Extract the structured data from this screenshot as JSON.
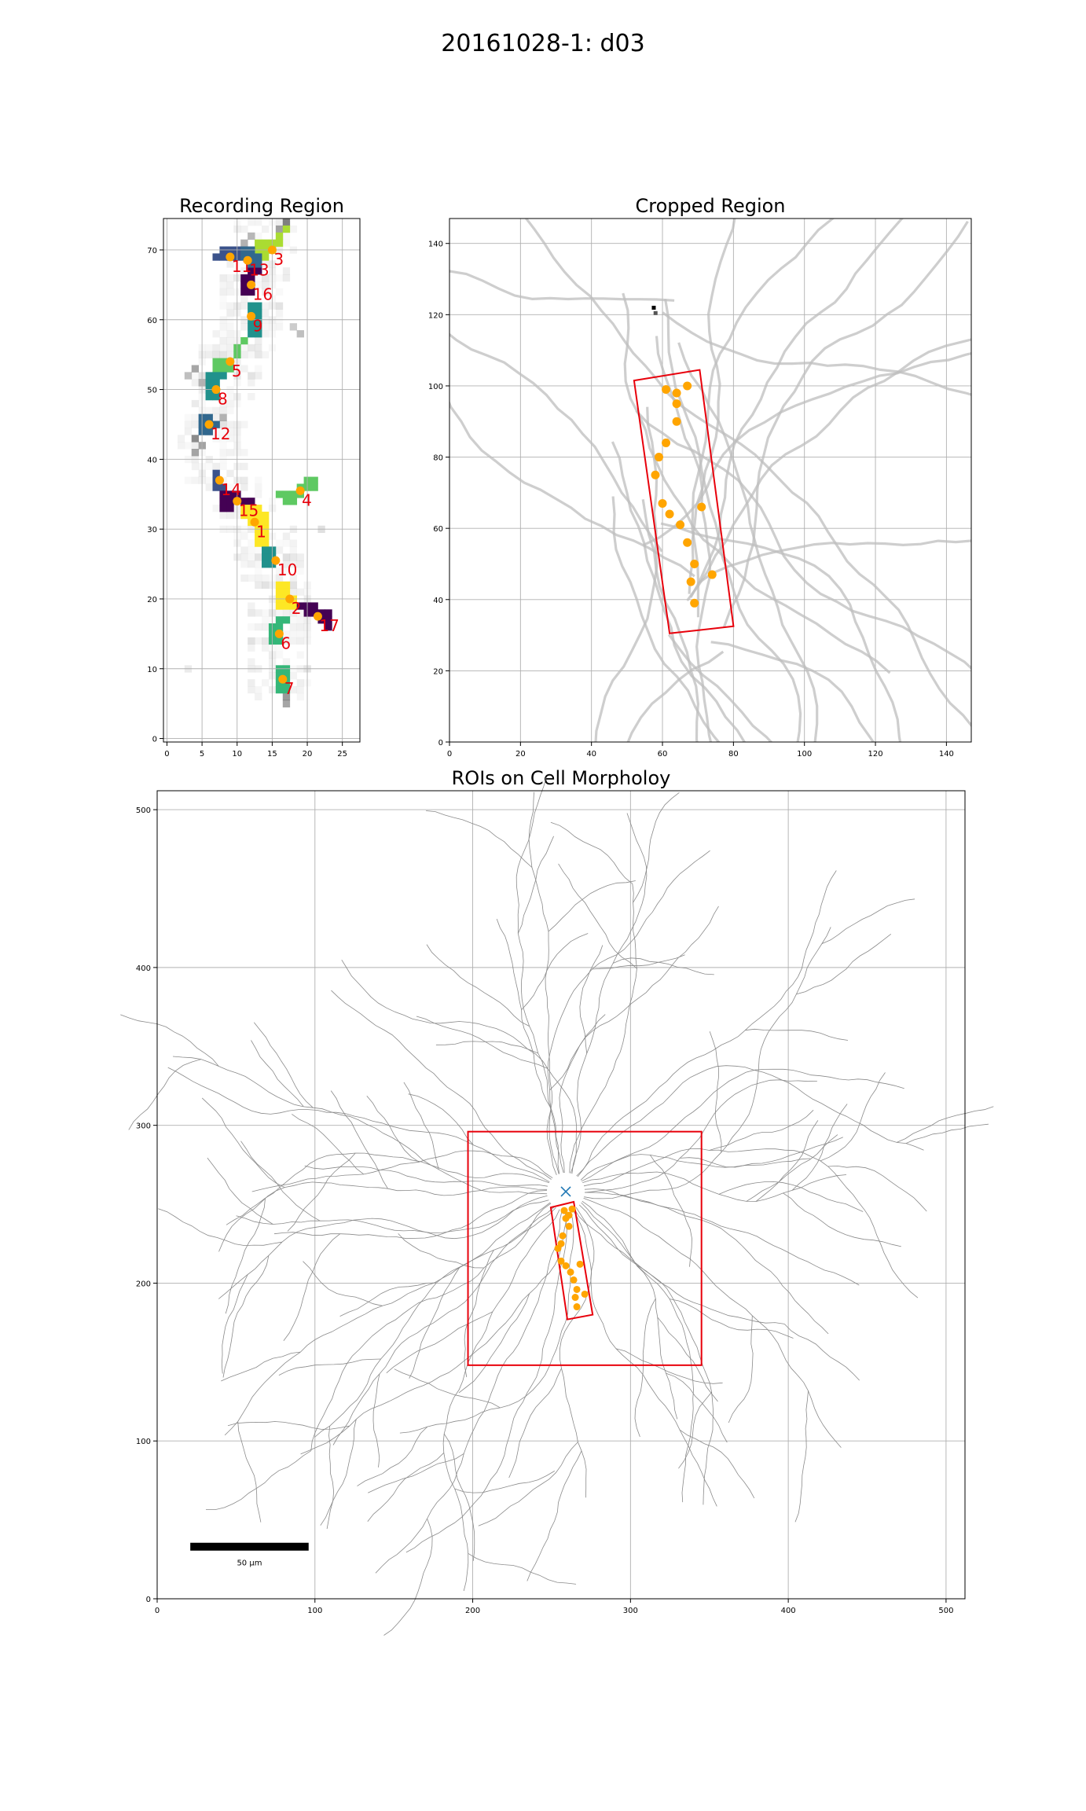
{
  "title": "20161028-1: d03",
  "colors": {
    "roi_marker": "#ffa500",
    "roi_label": "#e8000b",
    "box": "#e8000b",
    "soma_marker": "#1f77b4",
    "grid": "#b0b0b0",
    "dendrite": "#bdbdbd"
  },
  "chart_data": [
    {
      "type": "heatmap",
      "title": "Recording Region",
      "xlim": [
        -0.5,
        27.5
      ],
      "ylim": [
        -0.5,
        74.5
      ],
      "xticks": [
        0,
        5,
        10,
        15,
        20,
        25
      ],
      "yticks": [
        0,
        10,
        20,
        30,
        40,
        50,
        60,
        70
      ],
      "grid": true,
      "rois": [
        {
          "id": "1",
          "x": 12.5,
          "y": 31.0
        },
        {
          "id": "2",
          "x": 17.5,
          "y": 20.0
        },
        {
          "id": "3",
          "x": 15.0,
          "y": 70.0
        },
        {
          "id": "4",
          "x": 19.0,
          "y": 35.5
        },
        {
          "id": "5",
          "x": 9.0,
          "y": 54.0
        },
        {
          "id": "6",
          "x": 16.0,
          "y": 15.0
        },
        {
          "id": "7",
          "x": 16.5,
          "y": 8.5
        },
        {
          "id": "8",
          "x": 7.0,
          "y": 50.0
        },
        {
          "id": "9",
          "x": 12.0,
          "y": 60.5
        },
        {
          "id": "10",
          "x": 15.5,
          "y": 25.5
        },
        {
          "id": "11",
          "x": 9.0,
          "y": 69.0
        },
        {
          "id": "12",
          "x": 6.0,
          "y": 45.0
        },
        {
          "id": "13",
          "x": 11.5,
          "y": 68.5
        },
        {
          "id": "14",
          "x": 7.5,
          "y": 37.0
        },
        {
          "id": "15",
          "x": 10.0,
          "y": 34.0
        },
        {
          "id": "16",
          "x": 12.0,
          "y": 65.0
        },
        {
          "id": "17",
          "x": 21.5,
          "y": 17.5
        }
      ]
    },
    {
      "type": "scatter",
      "title": "Cropped Region",
      "xlim": [
        0,
        147
      ],
      "ylim": [
        0,
        147
      ],
      "xticks": [
        0,
        20,
        40,
        60,
        80,
        100,
        120,
        140
      ],
      "yticks": [
        0,
        20,
        40,
        60,
        80,
        100,
        120,
        140
      ],
      "grid": true,
      "rect": [
        [
          52,
          101.5
        ],
        [
          70.5,
          104.5
        ],
        [
          80,
          32.5
        ],
        [
          62,
          30.5
        ]
      ],
      "points": [
        [
          61,
          99
        ],
        [
          64,
          98
        ],
        [
          67,
          100
        ],
        [
          64,
          95
        ],
        [
          64,
          90
        ],
        [
          61,
          84
        ],
        [
          59,
          80
        ],
        [
          58,
          75
        ],
        [
          60,
          67
        ],
        [
          62,
          64
        ],
        [
          65,
          61
        ],
        [
          71,
          66
        ],
        [
          67,
          56
        ],
        [
          69,
          50
        ],
        [
          74,
          47
        ],
        [
          68,
          45
        ],
        [
          69,
          39
        ]
      ]
    },
    {
      "type": "scatter",
      "title": "ROIs on Cell Morpholoy",
      "xlim": [
        0,
        512
      ],
      "ylim": [
        0,
        512
      ],
      "xticks": [
        0,
        100,
        200,
        300,
        400,
        500
      ],
      "yticks": [
        0,
        100,
        200,
        300,
        400,
        500
      ],
      "grid": true,
      "outer_rect": [
        197,
        148,
        345,
        296
      ],
      "inner_rect": [
        [
          249.5,
          248
        ],
        [
          264,
          251.5
        ],
        [
          276,
          180
        ],
        [
          260,
          177
        ]
      ],
      "soma": [
        259,
        258
      ],
      "points": [
        [
          258,
          246
        ],
        [
          261,
          243
        ],
        [
          263,
          247
        ],
        [
          259,
          241
        ],
        [
          261,
          236
        ],
        [
          257,
          230
        ],
        [
          256,
          225
        ],
        [
          254,
          222
        ],
        [
          256,
          214
        ],
        [
          259,
          211
        ],
        [
          262,
          207
        ],
        [
          268,
          212
        ],
        [
          264,
          202
        ],
        [
          266,
          196
        ],
        [
          271,
          193
        ],
        [
          265,
          191
        ],
        [
          266,
          185
        ]
      ],
      "scalebar_label": "50 µm",
      "scalebar_x": [
        21,
        96
      ],
      "scalebar_y": 33
    }
  ]
}
